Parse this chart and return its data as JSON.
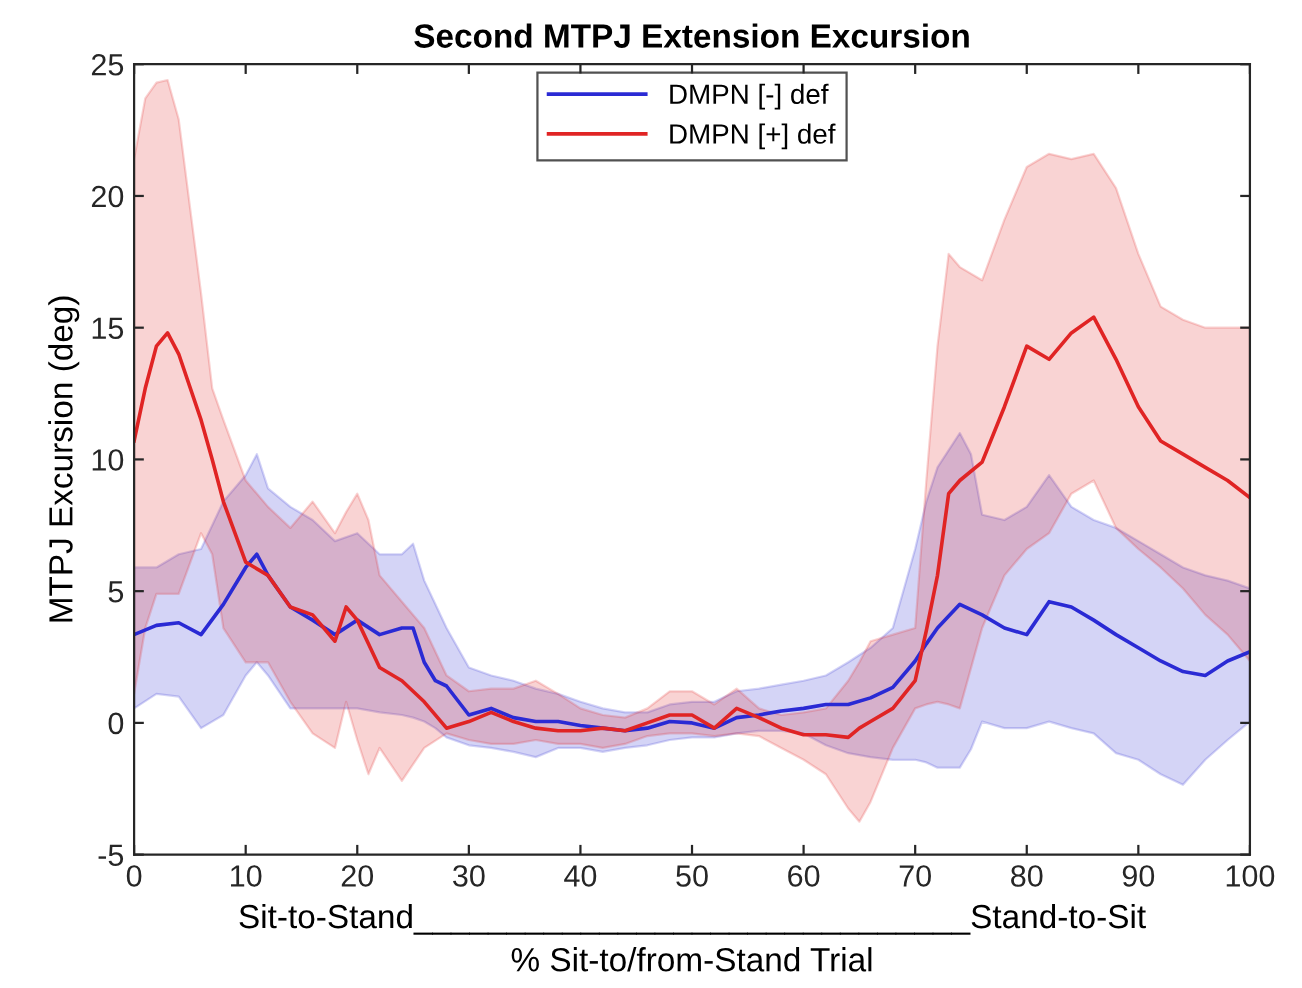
{
  "chart_data": {
    "type": "line",
    "title": "Second MTPJ Extension Excursion",
    "xlabel": "Sit-to-Stand______________________________Stand-to-Sit\n% Sit-to/from-Stand Trial",
    "ylabel": "MTPJ Excursion (deg)",
    "xlim": [
      0,
      100
    ],
    "xticks": [
      0,
      10,
      20,
      30,
      40,
      50,
      60,
      70,
      80,
      90,
      100
    ],
    "ylim": [
      -5,
      25
    ],
    "yticks": [
      -5,
      0,
      5,
      10,
      15,
      20,
      25
    ],
    "grid": false,
    "legend": "top",
    "marker": "none",
    "line_style": "solid",
    "series": [
      {
        "name": "DMPN [-] def",
        "color": "#2a2ad4",
        "x": [
          0,
          2,
          4,
          6,
          8,
          10,
          11,
          12,
          14,
          16,
          18,
          20,
          22,
          24,
          25,
          26,
          27,
          28,
          30,
          32,
          34,
          36,
          38,
          40,
          42,
          44,
          46,
          48,
          50,
          52,
          54,
          56,
          58,
          60,
          62,
          64,
          66,
          68,
          70,
          71,
          72,
          74,
          75,
          76,
          78,
          80,
          82,
          84,
          86,
          88,
          90,
          92,
          94,
          96,
          98,
          100
        ],
        "values": [
          3.35,
          3.7,
          3.8,
          3.35,
          4.5,
          5.9,
          6.4,
          5.6,
          4.4,
          3.9,
          3.35,
          3.9,
          3.35,
          3.6,
          3.6,
          2.3,
          1.6,
          1.4,
          0.3,
          0.55,
          0.2,
          0.05,
          0.05,
          -0.1,
          -0.2,
          -0.3,
          -0.2,
          0.05,
          0,
          -0.2,
          0.2,
          0.3,
          0.45,
          0.55,
          0.7,
          0.7,
          0.95,
          1.35,
          2.35,
          3.0,
          3.6,
          4.5,
          4.3,
          4.1,
          3.6,
          3.35,
          4.6,
          4.4,
          3.9,
          3.35,
          2.85,
          2.35,
          1.95,
          1.8,
          2.35,
          2.7
        ],
        "upper": [
          5.9,
          5.9,
          6.4,
          6.6,
          8.4,
          9.4,
          10.2,
          8.9,
          8.2,
          7.7,
          6.9,
          7.2,
          6.4,
          6.4,
          6.8,
          5.4,
          4.5,
          3.6,
          2.1,
          1.8,
          1.6,
          1.3,
          1.1,
          0.8,
          0.55,
          0.4,
          0.4,
          0.7,
          0.8,
          0.8,
          1.2,
          1.3,
          1.45,
          1.6,
          1.8,
          2.3,
          2.85,
          3.6,
          6.6,
          8.4,
          9.7,
          11,
          10.2,
          7.9,
          7.7,
          8.2,
          9.4,
          8.2,
          7.7,
          7.4,
          6.9,
          6.4,
          5.9,
          5.6,
          5.4,
          5.1
        ],
        "lower": [
          0.55,
          1.1,
          1.0,
          -0.2,
          0.3,
          1.8,
          2.3,
          1.8,
          0.55,
          0.55,
          0.55,
          0.55,
          0.4,
          0.3,
          0.2,
          0.05,
          -0.2,
          -0.55,
          -0.85,
          -0.95,
          -1.1,
          -1.3,
          -0.95,
          -0.95,
          -1.1,
          -0.95,
          -0.85,
          -0.65,
          -0.55,
          -0.55,
          -0.4,
          -0.3,
          -0.3,
          -0.4,
          -0.85,
          -1.15,
          -1.3,
          -1.4,
          -1.4,
          -1.5,
          -1.7,
          -1.7,
          -1.0,
          0.05,
          -0.2,
          -0.2,
          0.05,
          -0.2,
          -0.4,
          -1.15,
          -1.4,
          -1.95,
          -2.35,
          -1.4,
          -0.65,
          0.05
        ]
      },
      {
        "name": "DMPN [+] def",
        "color": "#e02424",
        "x": [
          0,
          1,
          2,
          3,
          4,
          6,
          7,
          8,
          10,
          12,
          14,
          16,
          18,
          19,
          20,
          21,
          22,
          24,
          26,
          28,
          30,
          32,
          34,
          36,
          38,
          40,
          42,
          44,
          46,
          48,
          50,
          52,
          54,
          56,
          58,
          60,
          62,
          64,
          65,
          66,
          68,
          70,
          71,
          72,
          73,
          74,
          76,
          78,
          80,
          82,
          84,
          86,
          88,
          90,
          92,
          94,
          96,
          98,
          100
        ],
        "values": [
          10.7,
          12.7,
          14.3,
          14.8,
          14,
          11.5,
          10.0,
          8.4,
          6.1,
          5.6,
          4.4,
          4.1,
          3.1,
          4.4,
          3.9,
          3.0,
          2.1,
          1.6,
          0.8,
          -0.2,
          0.05,
          0.4,
          0.05,
          -0.2,
          -0.3,
          -0.3,
          -0.2,
          -0.3,
          0,
          0.3,
          0.3,
          -0.2,
          0.55,
          0.2,
          -0.2,
          -0.45,
          -0.45,
          -0.55,
          -0.2,
          0.05,
          0.55,
          1.6,
          3.5,
          5.6,
          8.7,
          9.2,
          9.9,
          12,
          14.3,
          13.8,
          14.8,
          15.4,
          13.8,
          12,
          10.7,
          10.2,
          9.7,
          9.2,
          8.55
        ],
        "upper": [
          21.4,
          23.7,
          24.3,
          24.4,
          22.9,
          16.3,
          12.7,
          11.5,
          9.2,
          8.2,
          7.4,
          8.4,
          7.2,
          8.0,
          8.7,
          7.7,
          5.6,
          4.6,
          3.6,
          1.8,
          1.2,
          1.3,
          1.3,
          1.6,
          1.1,
          0.55,
          0.3,
          0.2,
          0.55,
          1.2,
          1.2,
          0.7,
          1.3,
          0.55,
          0.3,
          0.4,
          0.55,
          1.6,
          2.3,
          3.1,
          3.35,
          3.6,
          9.2,
          14.3,
          17.8,
          17.3,
          16.8,
          19.1,
          21.1,
          21.6,
          21.4,
          21.6,
          20.3,
          17.8,
          15.8,
          15.3,
          15,
          15,
          15
        ],
        "lower": [
          1.1,
          3.6,
          4.9,
          4.9,
          4.9,
          7.2,
          6.4,
          3.6,
          2.3,
          2.3,
          0.8,
          -0.4,
          -0.95,
          0.8,
          -0.65,
          -1.95,
          -0.95,
          -2.2,
          -0.95,
          -0.4,
          -0.65,
          -0.8,
          -0.8,
          -0.65,
          -0.8,
          -0.8,
          -0.95,
          -0.8,
          -0.5,
          -0.4,
          -0.4,
          -0.5,
          -0.4,
          -0.5,
          -0.95,
          -1.4,
          -1.95,
          -3.25,
          -3.75,
          -3.0,
          -0.95,
          0.55,
          0.7,
          0.8,
          0.7,
          0.55,
          3.6,
          5.6,
          6.6,
          7.2,
          8.7,
          9.2,
          7.4,
          6.6,
          5.9,
          5.1,
          4.1,
          3.35,
          2.35
        ]
      }
    ]
  }
}
